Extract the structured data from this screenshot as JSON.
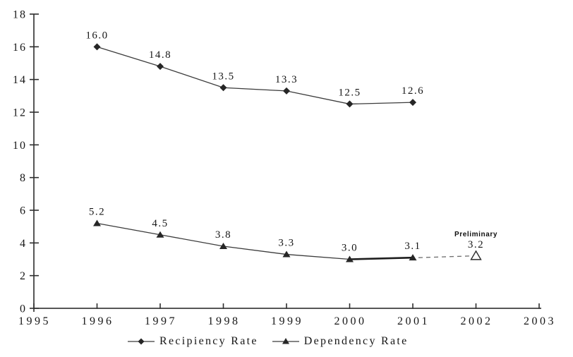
{
  "chart_data": {
    "type": "line",
    "title": "",
    "xlabel": "",
    "ylabel": "",
    "xlim": [
      1995,
      2003
    ],
    "ylim": [
      0,
      18
    ],
    "x_ticks": [
      1995,
      1996,
      1997,
      1998,
      1999,
      2000,
      2001,
      2002,
      2003
    ],
    "y_ticks": [
      0,
      2,
      4,
      6,
      8,
      10,
      12,
      14,
      16,
      18
    ],
    "grid": false,
    "legend_position": "bottom-center",
    "x": [
      1996,
      1997,
      1998,
      1999,
      2000,
      2001
    ],
    "series": [
      {
        "name": "Recipiency Rate",
        "marker": "diamond",
        "values": [
          16.0,
          14.8,
          13.5,
          13.3,
          12.5,
          12.6
        ],
        "point_labels": [
          "16.0",
          "14.8",
          "13.5",
          "13.3",
          "12.5",
          "12.6"
        ]
      },
      {
        "name": "Dependency Rate",
        "marker": "triangle",
        "values": [
          5.2,
          4.5,
          3.8,
          3.3,
          3.0,
          3.1
        ],
        "point_labels": [
          "5.2",
          "4.5",
          "3.8",
          "3.3",
          "3.0",
          "3.1"
        ],
        "emphasized_segment": {
          "from_x": 2000,
          "to_x": 2001
        }
      }
    ],
    "preliminary_point": {
      "series": "Dependency Rate",
      "x": 2002,
      "value": 3.2,
      "label": "3.2",
      "annotation": "Preliminary",
      "marker": "open-triangle",
      "connector": "dashed"
    },
    "colors": {
      "line": "#3c3c3c",
      "marker": "#262626",
      "text": "#161616",
      "dashed_connector": "#6e6e6e",
      "background": "#ffffff"
    }
  },
  "legend": {
    "items": [
      {
        "label": "Recipiency Rate",
        "marker": "diamond"
      },
      {
        "label": "Dependency Rate",
        "marker": "triangle"
      }
    ]
  }
}
